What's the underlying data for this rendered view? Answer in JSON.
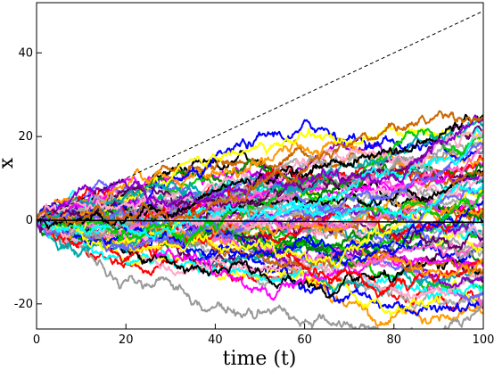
{
  "chart_data": {
    "type": "line",
    "title": "",
    "xlabel": "time (t)",
    "ylabel": "x",
    "xlim": [
      0,
      100
    ],
    "ylim": [
      -26,
      52
    ],
    "x_ticks": [
      0,
      20,
      40,
      60,
      80,
      100
    ],
    "y_ticks": [
      -20,
      0,
      20,
      40
    ],
    "grid": false,
    "legend": "none",
    "reference_lines": [
      {
        "style": "dashed",
        "color": "#000000",
        "x": [
          0,
          100
        ],
        "y": [
          0,
          50
        ]
      },
      {
        "style": "solid",
        "color": "#000000",
        "x": [
          0,
          100
        ],
        "y": [
          0,
          -0.5
        ]
      }
    ],
    "random_walks": {
      "count": 70,
      "x_range": [
        0,
        100
      ],
      "start": 0,
      "approx_final_range": [
        -22,
        25
      ],
      "envelope_upper_at_100": 25,
      "envelope_lower_at_100": -24,
      "colors": [
        "#ff0000",
        "#000000",
        "#00cc00",
        "#0000ff",
        "#ff00ff",
        "#00ffff",
        "#ffff00",
        "#ff9900",
        "#8800cc",
        "#660066",
        "#999999",
        "#008800",
        "#ffaacc",
        "#6666ff",
        "#aaaaaa",
        "#cc6600",
        "#00aaaa",
        "#ff66cc"
      ]
    }
  }
}
